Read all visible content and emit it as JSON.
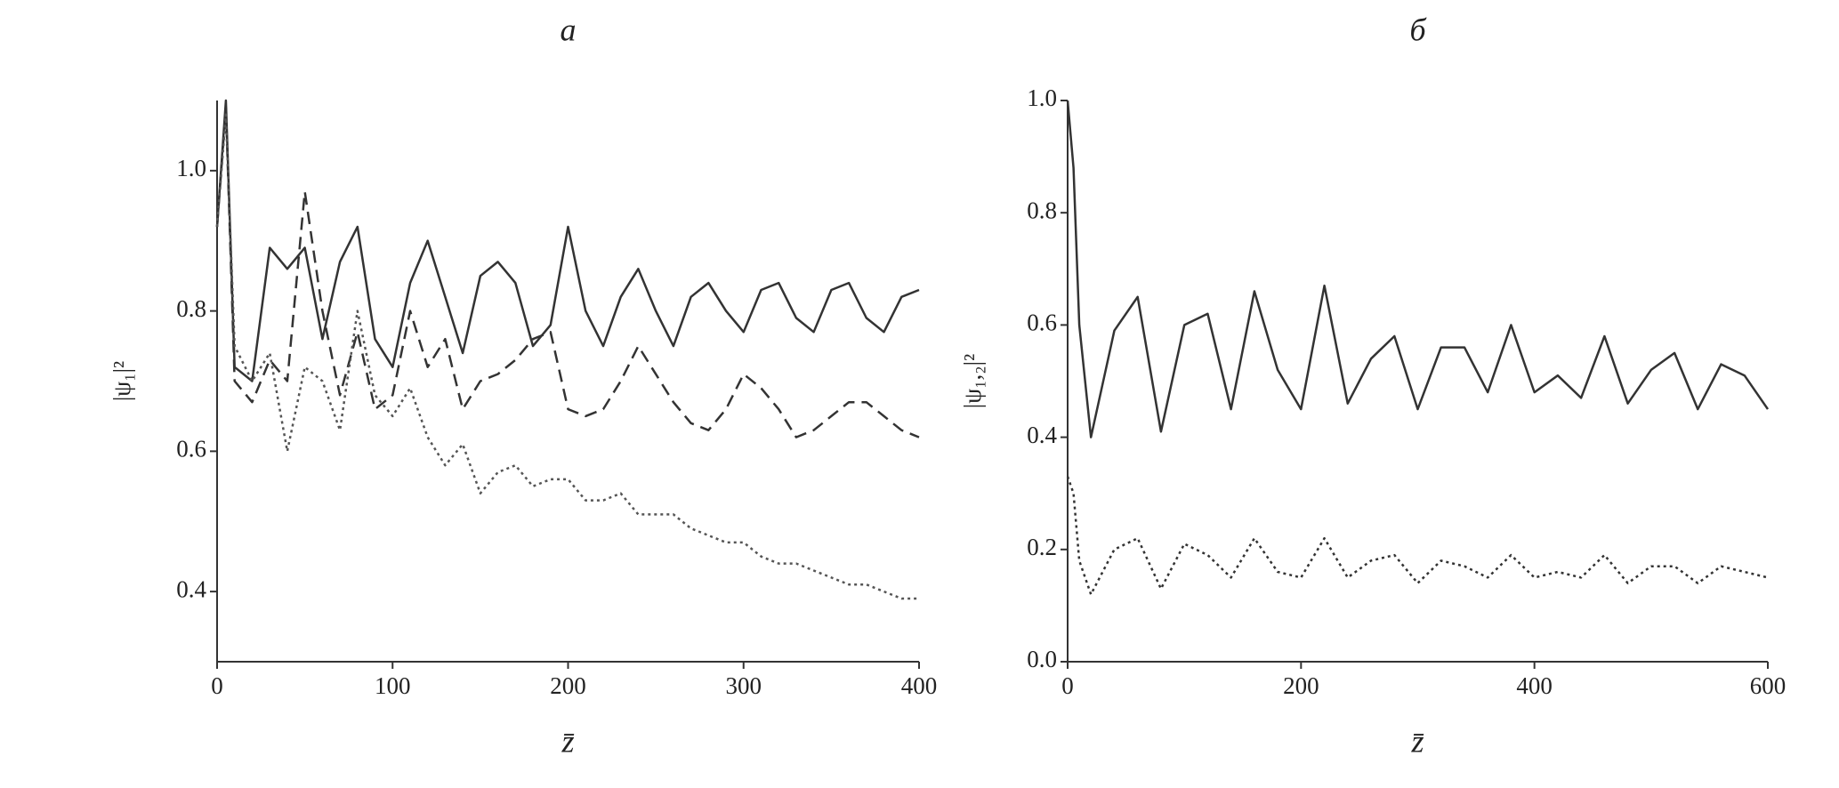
{
  "chart_data": [
    {
      "type": "line",
      "title": "а",
      "x_label": "z̄",
      "y_label": "|ψ₁|²",
      "x": [
        0,
        5,
        10,
        20,
        30,
        40,
        50,
        60,
        70,
        80,
        90,
        100,
        110,
        120,
        130,
        140,
        150,
        160,
        170,
        180,
        190,
        200,
        210,
        220,
        230,
        240,
        250,
        260,
        270,
        280,
        290,
        300,
        310,
        320,
        330,
        340,
        350,
        360,
        370,
        380,
        390,
        400
      ],
      "series": [
        {
          "color": "#333333",
          "style": "solid",
          "values": [
            0.92,
            1.1,
            0.72,
            0.7,
            0.89,
            0.86,
            0.89,
            0.76,
            0.87,
            0.92,
            0.76,
            0.72,
            0.84,
            0.9,
            0.82,
            0.74,
            0.85,
            0.87,
            0.84,
            0.75,
            0.78,
            0.92,
            0.8,
            0.75,
            0.82,
            0.86,
            0.8,
            0.75,
            0.82,
            0.84,
            0.8,
            0.77,
            0.83,
            0.84,
            0.79,
            0.77,
            0.83,
            0.84,
            0.79,
            0.77,
            0.82,
            0.83
          ]
        },
        {
          "color": "#333333",
          "style": "dashed",
          "values": [
            0.92,
            1.09,
            0.7,
            0.67,
            0.73,
            0.7,
            0.97,
            0.8,
            0.68,
            0.77,
            0.66,
            0.68,
            0.8,
            0.72,
            0.76,
            0.66,
            0.7,
            0.71,
            0.73,
            0.76,
            0.77,
            0.66,
            0.65,
            0.66,
            0.7,
            0.75,
            0.71,
            0.67,
            0.64,
            0.63,
            0.66,
            0.71,
            0.69,
            0.66,
            0.62,
            0.63,
            0.65,
            0.67,
            0.67,
            0.65,
            0.63,
            0.62
          ]
        },
        {
          "color": "#555555",
          "style": "dotted",
          "values": [
            0.92,
            1.08,
            0.75,
            0.7,
            0.74,
            0.6,
            0.72,
            0.7,
            0.63,
            0.8,
            0.68,
            0.65,
            0.69,
            0.62,
            0.58,
            0.61,
            0.54,
            0.57,
            0.58,
            0.55,
            0.56,
            0.56,
            0.53,
            0.53,
            0.54,
            0.51,
            0.51,
            0.51,
            0.49,
            0.48,
            0.47,
            0.47,
            0.45,
            0.44,
            0.44,
            0.43,
            0.42,
            0.41,
            0.41,
            0.4,
            0.39,
            0.39
          ]
        }
      ],
      "xlim": [
        0,
        400
      ],
      "xticks": [
        0,
        100,
        200,
        300,
        400
      ],
      "ylim": [
        0.3,
        1.1
      ],
      "yticks": [
        0.4,
        0.6,
        0.8,
        {
          "value": 1,
          "label": "1.0"
        }
      ]
    },
    {
      "type": "line",
      "title": "б",
      "x_label": "z̄",
      "y_label": "|ψ₁,₂|²",
      "x": [
        0,
        5,
        10,
        20,
        40,
        60,
        80,
        100,
        120,
        140,
        160,
        180,
        200,
        220,
        240,
        260,
        280,
        300,
        320,
        340,
        360,
        380,
        400,
        420,
        440,
        460,
        480,
        500,
        520,
        540,
        560,
        580,
        600
      ],
      "series": [
        {
          "color": "#333333",
          "style": "solid",
          "values": [
            1.0,
            0.88,
            0.6,
            0.4,
            0.59,
            0.65,
            0.41,
            0.6,
            0.62,
            0.45,
            0.66,
            0.52,
            0.45,
            0.67,
            0.46,
            0.54,
            0.58,
            0.45,
            0.56,
            0.56,
            0.48,
            0.6,
            0.48,
            0.51,
            0.47,
            0.58,
            0.46,
            0.52,
            0.55,
            0.45,
            0.53,
            0.51,
            0.45
          ]
        },
        {
          "color": "#333333",
          "style": "dotted",
          "values": [
            0.33,
            0.3,
            0.18,
            0.12,
            0.2,
            0.22,
            0.13,
            0.21,
            0.19,
            0.15,
            0.22,
            0.16,
            0.15,
            0.22,
            0.15,
            0.18,
            0.19,
            0.14,
            0.18,
            0.17,
            0.15,
            0.19,
            0.15,
            0.16,
            0.15,
            0.19,
            0.14,
            0.17,
            0.17,
            0.14,
            0.17,
            0.16,
            0.15
          ]
        }
      ],
      "xlim": [
        0,
        600
      ],
      "xticks": [
        0,
        200,
        400,
        600
      ],
      "ylim": [
        0,
        1
      ],
      "yticks": [
        {
          "value": 0,
          "label": "0.0"
        },
        0.2,
        0.4,
        0.6,
        0.8,
        {
          "value": 1,
          "label": "1.0"
        }
      ]
    }
  ]
}
